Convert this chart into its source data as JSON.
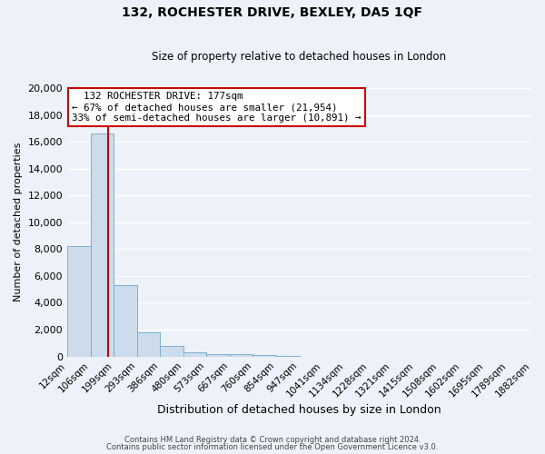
{
  "title": "132, ROCHESTER DRIVE, BEXLEY, DA5 1QF",
  "subtitle": "Size of property relative to detached houses in London",
  "xlabel": "Distribution of detached houses by size in London",
  "ylabel": "Number of detached properties",
  "bar_color": "#ccdcec",
  "bar_edge_color": "#7aafd4",
  "background_color": "#edf2f8",
  "grid_color": "#ffffff",
  "red_line_x": 177,
  "bin_edges": [
    12,
    106,
    199,
    293,
    386,
    480,
    573,
    667,
    760,
    854,
    947,
    1041,
    1134,
    1228,
    1321,
    1415,
    1508,
    1602,
    1695,
    1789,
    1882
  ],
  "bar_heights": [
    8200,
    16600,
    5300,
    1800,
    800,
    300,
    200,
    150,
    100,
    60,
    0,
    0,
    0,
    0,
    0,
    0,
    0,
    0,
    0,
    0
  ],
  "tick_labels": [
    "12sqm",
    "106sqm",
    "199sqm",
    "293sqm",
    "386sqm",
    "480sqm",
    "573sqm",
    "667sqm",
    "760sqm",
    "854sqm",
    "947sqm",
    "1041sqm",
    "1134sqm",
    "1228sqm",
    "1321sqm",
    "1415sqm",
    "1508sqm",
    "1602sqm",
    "1695sqm",
    "1789sqm",
    "1882sqm"
  ],
  "annotation_title": "132 ROCHESTER DRIVE: 177sqm",
  "annotation_line1": "← 67% of detached houses are smaller (21,954)",
  "annotation_line2": "33% of semi-detached houses are larger (10,891) →",
  "annotation_box_color": "#ffffff",
  "annotation_border_color": "#cc0000",
  "footer1": "Contains HM Land Registry data © Crown copyright and database right 2024.",
  "footer2": "Contains public sector information licensed under the Open Government Licence v3.0.",
  "ylim": [
    0,
    20000
  ],
  "yticks": [
    0,
    2000,
    4000,
    6000,
    8000,
    10000,
    12000,
    14000,
    16000,
    18000,
    20000
  ],
  "title_fontsize": 10,
  "subtitle_fontsize": 8.5
}
